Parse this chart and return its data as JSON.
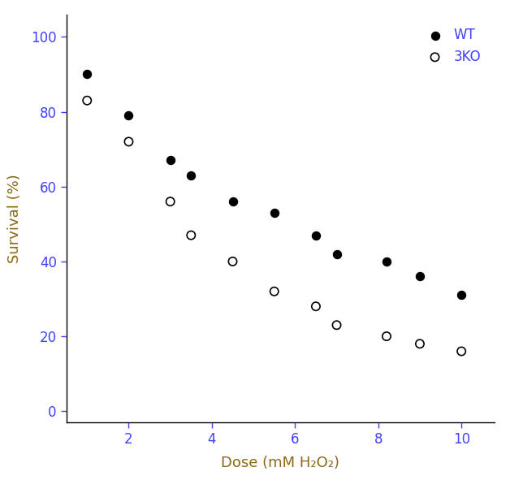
{
  "wt_x": [
    1,
    2,
    3,
    3.5,
    4.5,
    5.5,
    6.5,
    7,
    8.2,
    9,
    10
  ],
  "wt_y": [
    90,
    79,
    67,
    63,
    56,
    53,
    47,
    42,
    40,
    36,
    31
  ],
  "ko_x": [
    1,
    2,
    3,
    3.5,
    4.5,
    5.5,
    6.5,
    7,
    8.2,
    9,
    10
  ],
  "ko_y": [
    83,
    72,
    56,
    47,
    40,
    32,
    28,
    23,
    20,
    18,
    16
  ],
  "xlabel": "Dose (mM H₂O₂)",
  "ylabel": "Survival (%)",
  "xlim": [
    0.5,
    10.8
  ],
  "ylim": [
    -3,
    106
  ],
  "xticks": [
    2,
    4,
    6,
    8,
    10
  ],
  "yticks": [
    0,
    20,
    40,
    60,
    80,
    100
  ],
  "wt_label": "WT",
  "ko_label": "3KO",
  "bg_color": "#ffffff",
  "marker_color": "#000000",
  "tick_label_color": "#4040ff",
  "axis_label_color": "#8B6914",
  "legend_label_color": "#4040ff",
  "marker_size": 55,
  "marker_linewidth": 1.2
}
